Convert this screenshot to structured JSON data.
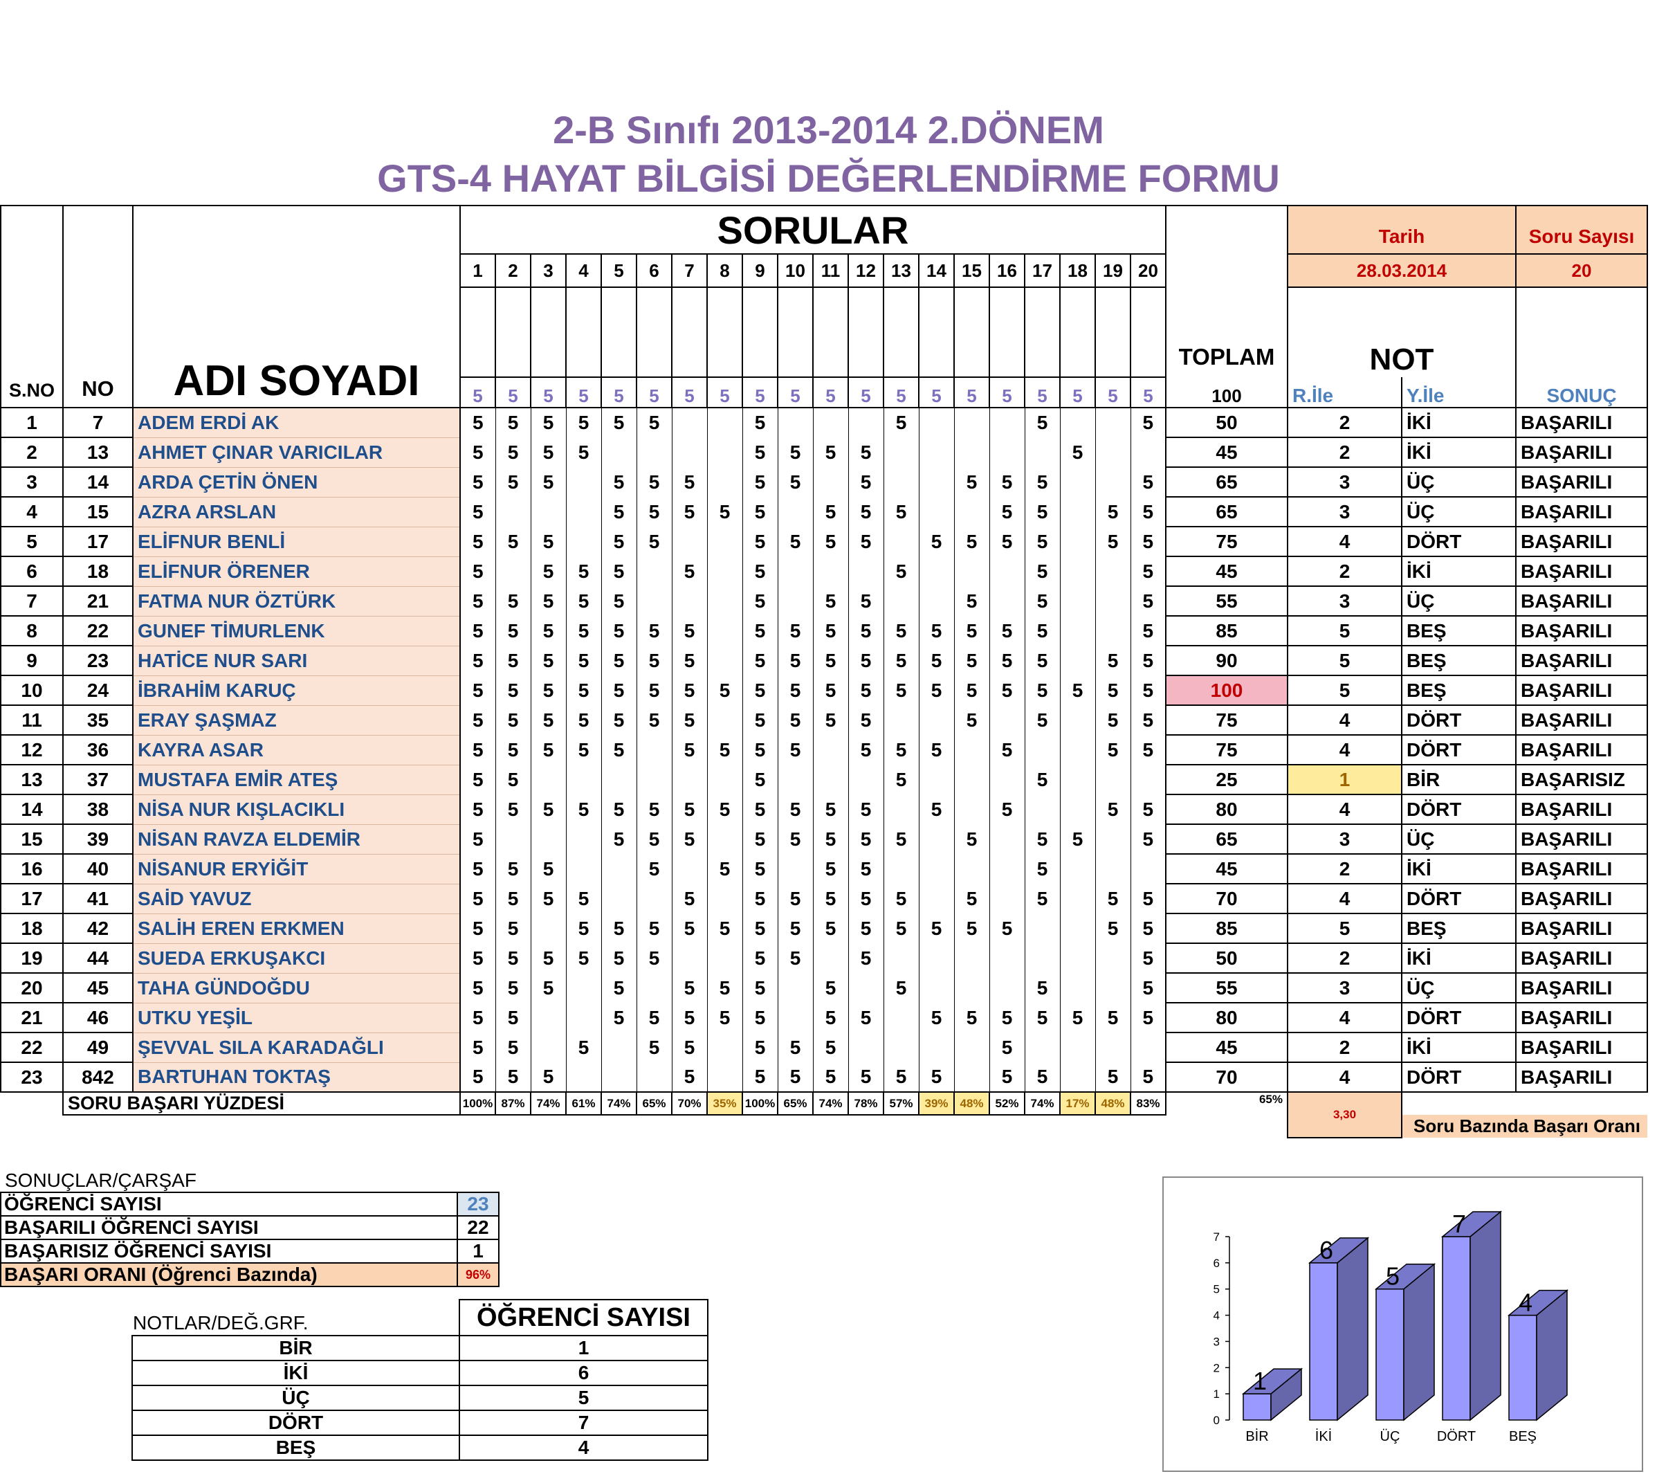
{
  "title": {
    "line1": "2-B Sınıfı 2013-2014 2.DÖNEM",
    "line2": "GTS-4 HAYAT BİLGİSİ DEĞERLENDİRME FORMU"
  },
  "header": {
    "sno": "S.NO",
    "no": "NO",
    "name": "ADI SOYADI",
    "sorular": "SORULAR",
    "toplam": "TOPLAM",
    "toplam_max": "100",
    "not": "NOT",
    "r_ile": "R.İle",
    "y_ile": "Y.İle",
    "sonuc": "SONUÇ",
    "tarih_label": "Tarih",
    "tarih_value": "28.03.2014",
    "soru_sayisi_label": "Soru Sayısı",
    "soru_sayisi_value": "20",
    "question_numbers": [
      "1",
      "2",
      "3",
      "4",
      "5",
      "6",
      "7",
      "8",
      "9",
      "10",
      "11",
      "12",
      "13",
      "14",
      "15",
      "16",
      "17",
      "18",
      "19",
      "20"
    ],
    "question_points": [
      "5",
      "5",
      "5",
      "5",
      "5",
      "5",
      "5",
      "5",
      "5",
      "5",
      "5",
      "5",
      "5",
      "5",
      "5",
      "5",
      "5",
      "5",
      "5",
      "5"
    ]
  },
  "students": [
    {
      "sno": "1",
      "no": "7",
      "name": "ADEM ERDİ AK",
      "scores": [
        "5",
        "5",
        "5",
        "5",
        "5",
        "5",
        "",
        "",
        "5",
        "",
        "",
        "",
        "5",
        "",
        "",
        "",
        "5",
        "",
        "",
        "5"
      ],
      "total": "50",
      "r": "2",
      "y": "İKİ",
      "result": "BAŞARILI"
    },
    {
      "sno": "2",
      "no": "13",
      "name": "AHMET ÇINAR VARICILAR",
      "scores": [
        "5",
        "5",
        "5",
        "5",
        "",
        "",
        "",
        "",
        "5",
        "5",
        "5",
        "5",
        "",
        "",
        "",
        "",
        "",
        "5",
        "",
        ""
      ],
      "total": "45",
      "r": "2",
      "y": "İKİ",
      "result": "BAŞARILI"
    },
    {
      "sno": "3",
      "no": "14",
      "name": "ARDA ÇETİN ÖNEN",
      "scores": [
        "5",
        "5",
        "5",
        "",
        "5",
        "5",
        "5",
        "",
        "5",
        "5",
        "",
        "5",
        "",
        "",
        "5",
        "5",
        "5",
        "",
        "",
        "5"
      ],
      "total": "65",
      "r": "3",
      "y": "ÜÇ",
      "result": "BAŞARILI"
    },
    {
      "sno": "4",
      "no": "15",
      "name": "AZRA ARSLAN",
      "scores": [
        "5",
        "",
        "",
        "",
        "5",
        "5",
        "5",
        "5",
        "5",
        "",
        "5",
        "5",
        "5",
        "",
        "",
        "5",
        "5",
        "",
        "5",
        "5"
      ],
      "total": "65",
      "r": "3",
      "y": "ÜÇ",
      "result": "BAŞARILI"
    },
    {
      "sno": "5",
      "no": "17",
      "name": "ELİFNUR BENLİ",
      "scores": [
        "5",
        "5",
        "5",
        "",
        "5",
        "5",
        "",
        "",
        "5",
        "5",
        "5",
        "5",
        "",
        "5",
        "5",
        "5",
        "5",
        "",
        "5",
        "5"
      ],
      "total": "75",
      "r": "4",
      "y": "DÖRT",
      "result": "BAŞARILI"
    },
    {
      "sno": "6",
      "no": "18",
      "name": "ELİFNUR ÖRENER",
      "scores": [
        "5",
        "",
        "5",
        "5",
        "5",
        "",
        "5",
        "",
        "5",
        "",
        "",
        "",
        "5",
        "",
        "",
        "",
        "5",
        "",
        "",
        "5"
      ],
      "total": "45",
      "r": "2",
      "y": "İKİ",
      "result": "BAŞARILI"
    },
    {
      "sno": "7",
      "no": "21",
      "name": "FATMA NUR ÖZTÜRK",
      "scores": [
        "5",
        "5",
        "5",
        "5",
        "5",
        "",
        "",
        "",
        "5",
        "",
        "5",
        "5",
        "",
        "",
        "5",
        "",
        "5",
        "",
        "",
        "5"
      ],
      "total": "55",
      "r": "3",
      "y": "ÜÇ",
      "result": "BAŞARILI"
    },
    {
      "sno": "8",
      "no": "22",
      "name": "GUNEF TİMURLENK",
      "scores": [
        "5",
        "5",
        "5",
        "5",
        "5",
        "5",
        "5",
        "",
        "5",
        "5",
        "5",
        "5",
        "5",
        "5",
        "5",
        "5",
        "5",
        "",
        "",
        "5"
      ],
      "total": "85",
      "r": "5",
      "y": "BEŞ",
      "result": "BAŞARILI"
    },
    {
      "sno": "9",
      "no": "23",
      "name": "HATİCE NUR SARI",
      "scores": [
        "5",
        "5",
        "5",
        "5",
        "5",
        "5",
        "5",
        "",
        "5",
        "5",
        "5",
        "5",
        "5",
        "5",
        "5",
        "5",
        "5",
        "",
        "5",
        "5"
      ],
      "total": "90",
      "r": "5",
      "y": "BEŞ",
      "result": "BAŞARILI"
    },
    {
      "sno": "10",
      "no": "24",
      "name": "İBRAHİM KARUÇ",
      "scores": [
        "5",
        "5",
        "5",
        "5",
        "5",
        "5",
        "5",
        "5",
        "5",
        "5",
        "5",
        "5",
        "5",
        "5",
        "5",
        "5",
        "5",
        "5",
        "5",
        "5"
      ],
      "total": "100",
      "r": "5",
      "y": "BEŞ",
      "result": "BAŞARILI",
      "highlight_total": true
    },
    {
      "sno": "11",
      "no": "35",
      "name": "ERAY ŞAŞMAZ",
      "scores": [
        "5",
        "5",
        "5",
        "5",
        "5",
        "5",
        "5",
        "",
        "5",
        "5",
        "5",
        "5",
        "",
        "",
        "5",
        "",
        "5",
        "",
        "5",
        "5"
      ],
      "total": "75",
      "r": "4",
      "y": "DÖRT",
      "result": "BAŞARILI"
    },
    {
      "sno": "12",
      "no": "36",
      "name": "KAYRA ASAR",
      "scores": [
        "5",
        "5",
        "5",
        "5",
        "5",
        "",
        "5",
        "5",
        "5",
        "5",
        "",
        "5",
        "5",
        "5",
        "",
        "5",
        "",
        "",
        "5",
        "5"
      ],
      "total": "75",
      "r": "4",
      "y": "DÖRT",
      "result": "BAŞARILI"
    },
    {
      "sno": "13",
      "no": "37",
      "name": "MUSTAFA EMİR ATEŞ",
      "scores": [
        "5",
        "5",
        "",
        "",
        "",
        "",
        "",
        "",
        "5",
        "",
        "",
        "",
        "5",
        "",
        "",
        "",
        "5",
        "",
        "",
        ""
      ],
      "total": "25",
      "r": "1",
      "y": "BİR",
      "result": "BAŞARISIZ",
      "highlight_r": true
    },
    {
      "sno": "14",
      "no": "38",
      "name": "NİSA NUR KIŞLACIKLI",
      "scores": [
        "5",
        "5",
        "5",
        "5",
        "5",
        "5",
        "5",
        "5",
        "5",
        "5",
        "5",
        "5",
        "",
        "5",
        "",
        "5",
        "",
        "",
        "5",
        "5"
      ],
      "total": "80",
      "r": "4",
      "y": "DÖRT",
      "result": "BAŞARILI"
    },
    {
      "sno": "15",
      "no": "39",
      "name": "NİSAN RAVZA ELDEMİR",
      "scores": [
        "5",
        "",
        "",
        "",
        "5",
        "5",
        "5",
        "",
        "5",
        "5",
        "5",
        "5",
        "5",
        "",
        "5",
        "",
        "5",
        "5",
        "",
        "5"
      ],
      "total": "65",
      "r": "3",
      "y": "ÜÇ",
      "result": "BAŞARILI"
    },
    {
      "sno": "16",
      "no": "40",
      "name": "NİSANUR ERYİĞİT",
      "scores": [
        "5",
        "5",
        "5",
        "",
        "",
        "5",
        "",
        "5",
        "5",
        "",
        "5",
        "5",
        "",
        "",
        "",
        "",
        "5",
        "",
        "",
        ""
      ],
      "total": "45",
      "r": "2",
      "y": "İKİ",
      "result": "BAŞARILI"
    },
    {
      "sno": "17",
      "no": "41",
      "name": "SAİD YAVUZ",
      "scores": [
        "5",
        "5",
        "5",
        "5",
        "",
        "",
        "5",
        "",
        "5",
        "5",
        "5",
        "5",
        "5",
        "",
        "5",
        "",
        "5",
        "",
        "5",
        "5"
      ],
      "total": "70",
      "r": "4",
      "y": "DÖRT",
      "result": "BAŞARILI"
    },
    {
      "sno": "18",
      "no": "42",
      "name": "SALİH EREN ERKMEN",
      "scores": [
        "5",
        "5",
        "",
        "5",
        "5",
        "5",
        "5",
        "5",
        "5",
        "5",
        "5",
        "5",
        "5",
        "5",
        "5",
        "5",
        "",
        "",
        "5",
        "5"
      ],
      "total": "85",
      "r": "5",
      "y": "BEŞ",
      "result": "BAŞARILI"
    },
    {
      "sno": "19",
      "no": "44",
      "name": "SUEDA ERKUŞAKCI",
      "scores": [
        "5",
        "5",
        "5",
        "5",
        "5",
        "5",
        "",
        "",
        "5",
        "5",
        "",
        "5",
        "",
        "",
        "",
        "",
        "",
        "",
        "",
        "5"
      ],
      "total": "50",
      "r": "2",
      "y": "İKİ",
      "result": "BAŞARILI"
    },
    {
      "sno": "20",
      "no": "45",
      "name": "TAHA GÜNDOĞDU",
      "scores": [
        "5",
        "5",
        "5",
        "",
        "5",
        "",
        "5",
        "5",
        "5",
        "",
        "5",
        "",
        "5",
        "",
        "",
        "",
        "5",
        "",
        "",
        "5"
      ],
      "total": "55",
      "r": "3",
      "y": "ÜÇ",
      "result": "BAŞARILI"
    },
    {
      "sno": "21",
      "no": "46",
      "name": "UTKU YEŞİL",
      "scores": [
        "5",
        "5",
        "",
        "",
        "5",
        "5",
        "5",
        "5",
        "5",
        "",
        "5",
        "5",
        "",
        "5",
        "5",
        "5",
        "5",
        "5",
        "5",
        "5"
      ],
      "total": "80",
      "r": "4",
      "y": "DÖRT",
      "result": "BAŞARILI"
    },
    {
      "sno": "22",
      "no": "49",
      "name": "ŞEVVAL SILA KARADAĞLI",
      "scores": [
        "5",
        "5",
        "",
        "5",
        "",
        "5",
        "5",
        "",
        "5",
        "5",
        "5",
        "",
        "",
        "",
        "",
        "5",
        "",
        "",
        "",
        ""
      ],
      "total": "45",
      "r": "2",
      "y": "İKİ",
      "result": "BAŞARILI"
    },
    {
      "sno": "23",
      "no": "842",
      "name": "BARTUHAN TOKTAŞ",
      "scores": [
        "5",
        "5",
        "5",
        "",
        "",
        "",
        "5",
        "",
        "5",
        "5",
        "5",
        "5",
        "5",
        "5",
        "",
        "5",
        "5",
        "",
        "5",
        "5"
      ],
      "total": "70",
      "r": "4",
      "y": "DÖRT",
      "result": "BAŞARILI"
    }
  ],
  "summary_row": {
    "label": "SORU BAŞARI YÜZDESİ",
    "percents": [
      "100%",
      "87%",
      "74%",
      "61%",
      "74%",
      "65%",
      "70%",
      "35%",
      "100%",
      "65%",
      "74%",
      "78%",
      "57%",
      "39%",
      "48%",
      "52%",
      "74%",
      "17%",
      "48%",
      "83%"
    ],
    "low_flags": [
      false,
      false,
      false,
      false,
      false,
      false,
      false,
      true,
      false,
      false,
      false,
      false,
      false,
      true,
      true,
      false,
      false,
      true,
      true,
      false
    ],
    "overall_percent": "65%",
    "average": "3,30",
    "basari_orani_label": "Soru Bazında Başarı Oranı"
  },
  "results": {
    "heading": "SONUÇLAR/ÇARŞAF",
    "rows": [
      {
        "label": "ÖĞRENCİ SAYISI",
        "value": "23"
      },
      {
        "label": "BAŞARILI ÖĞRENCİ SAYISI",
        "value": "22"
      },
      {
        "label": "BAŞARISIZ ÖĞRENCİ SAYISI",
        "value": "1"
      },
      {
        "label": "BAŞARI ORANI (Öğrenci Bazında)",
        "value": "96%"
      }
    ]
  },
  "grades": {
    "heading": "NOTLAR/DEĞ.GRF.",
    "col_header": "ÖĞRENCİ SAYISI",
    "rows": [
      {
        "label": "BİR",
        "value": "1"
      },
      {
        "label": "İKİ",
        "value": "6"
      },
      {
        "label": "ÜÇ",
        "value": "5"
      },
      {
        "label": "DÖRT",
        "value": "7"
      },
      {
        "label": "BEŞ",
        "value": "4"
      }
    ]
  },
  "chart_data": {
    "type": "bar",
    "categories": [
      "BİR",
      "İKİ",
      "ÜÇ",
      "DÖRT",
      "BEŞ"
    ],
    "values": [
      1,
      6,
      5,
      7,
      4
    ],
    "ylim": [
      0,
      7
    ],
    "yticks": [
      "0",
      "1",
      "2",
      "3",
      "4",
      "5",
      "6",
      "7"
    ],
    "title": "",
    "xlabel": "",
    "ylabel": "",
    "bar_color": "#9999ff",
    "bar_side_color": "#6666aa",
    "bar_top_color": "#7777cc",
    "grid": false,
    "legend": "none"
  }
}
